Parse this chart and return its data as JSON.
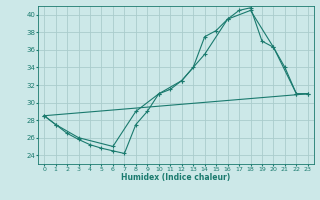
{
  "xlabel": "Humidex (Indice chaleur)",
  "xlim": [
    -0.5,
    23.5
  ],
  "ylim": [
    23,
    41
  ],
  "yticks": [
    24,
    26,
    28,
    30,
    32,
    34,
    36,
    38,
    40
  ],
  "xticks": [
    0,
    1,
    2,
    3,
    4,
    5,
    6,
    7,
    8,
    9,
    10,
    11,
    12,
    13,
    14,
    15,
    16,
    17,
    18,
    19,
    20,
    21,
    22,
    23
  ],
  "bg_color": "#cce8e8",
  "grid_color": "#aacccc",
  "line_color": "#1a7a6e",
  "series1_x": [
    0,
    1,
    2,
    3,
    4,
    5,
    6,
    7,
    8,
    9,
    10,
    11,
    12,
    13,
    14,
    15,
    16,
    17,
    18,
    19,
    20,
    21,
    22,
    23
  ],
  "series1_y": [
    28.5,
    27.5,
    26.5,
    25.8,
    25.2,
    24.8,
    24.5,
    24.2,
    27.5,
    29.0,
    31.0,
    31.5,
    32.5,
    34.0,
    37.5,
    38.2,
    39.5,
    40.5,
    40.8,
    37.0,
    36.3,
    34.0,
    31.0,
    31.0
  ],
  "series2_x": [
    0,
    1,
    3,
    6,
    8,
    10,
    12,
    14,
    16,
    18,
    20,
    22,
    23
  ],
  "series2_y": [
    28.5,
    27.5,
    26.0,
    25.0,
    29.0,
    31.0,
    32.5,
    35.5,
    39.5,
    40.5,
    36.3,
    31.0,
    31.0
  ],
  "series3_x": [
    0,
    23
  ],
  "series3_y": [
    28.5,
    31.0
  ]
}
